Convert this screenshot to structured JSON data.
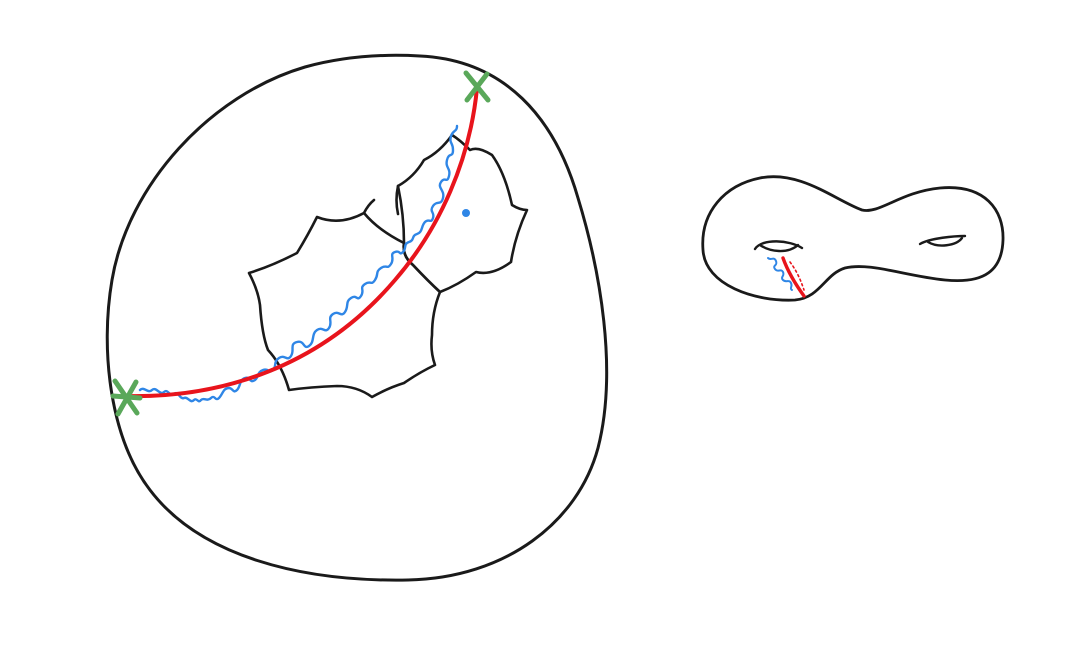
{
  "colors": {
    "background": "#ffffff",
    "outline": "#1a1a1a",
    "geodesic": "#e8141c",
    "random_path": "#2f86e6",
    "endpoint_marker": "#5aa85a"
  },
  "figures": [
    {
      "id": "disk-model",
      "parts": [
        "boundary-circle",
        "tiling-polygons",
        "geodesic",
        "random-path",
        "endpoints"
      ]
    },
    {
      "id": "surface",
      "parts": [
        "genus-two-surface",
        "handle-marks",
        "geodesic",
        "random-path"
      ]
    }
  ]
}
